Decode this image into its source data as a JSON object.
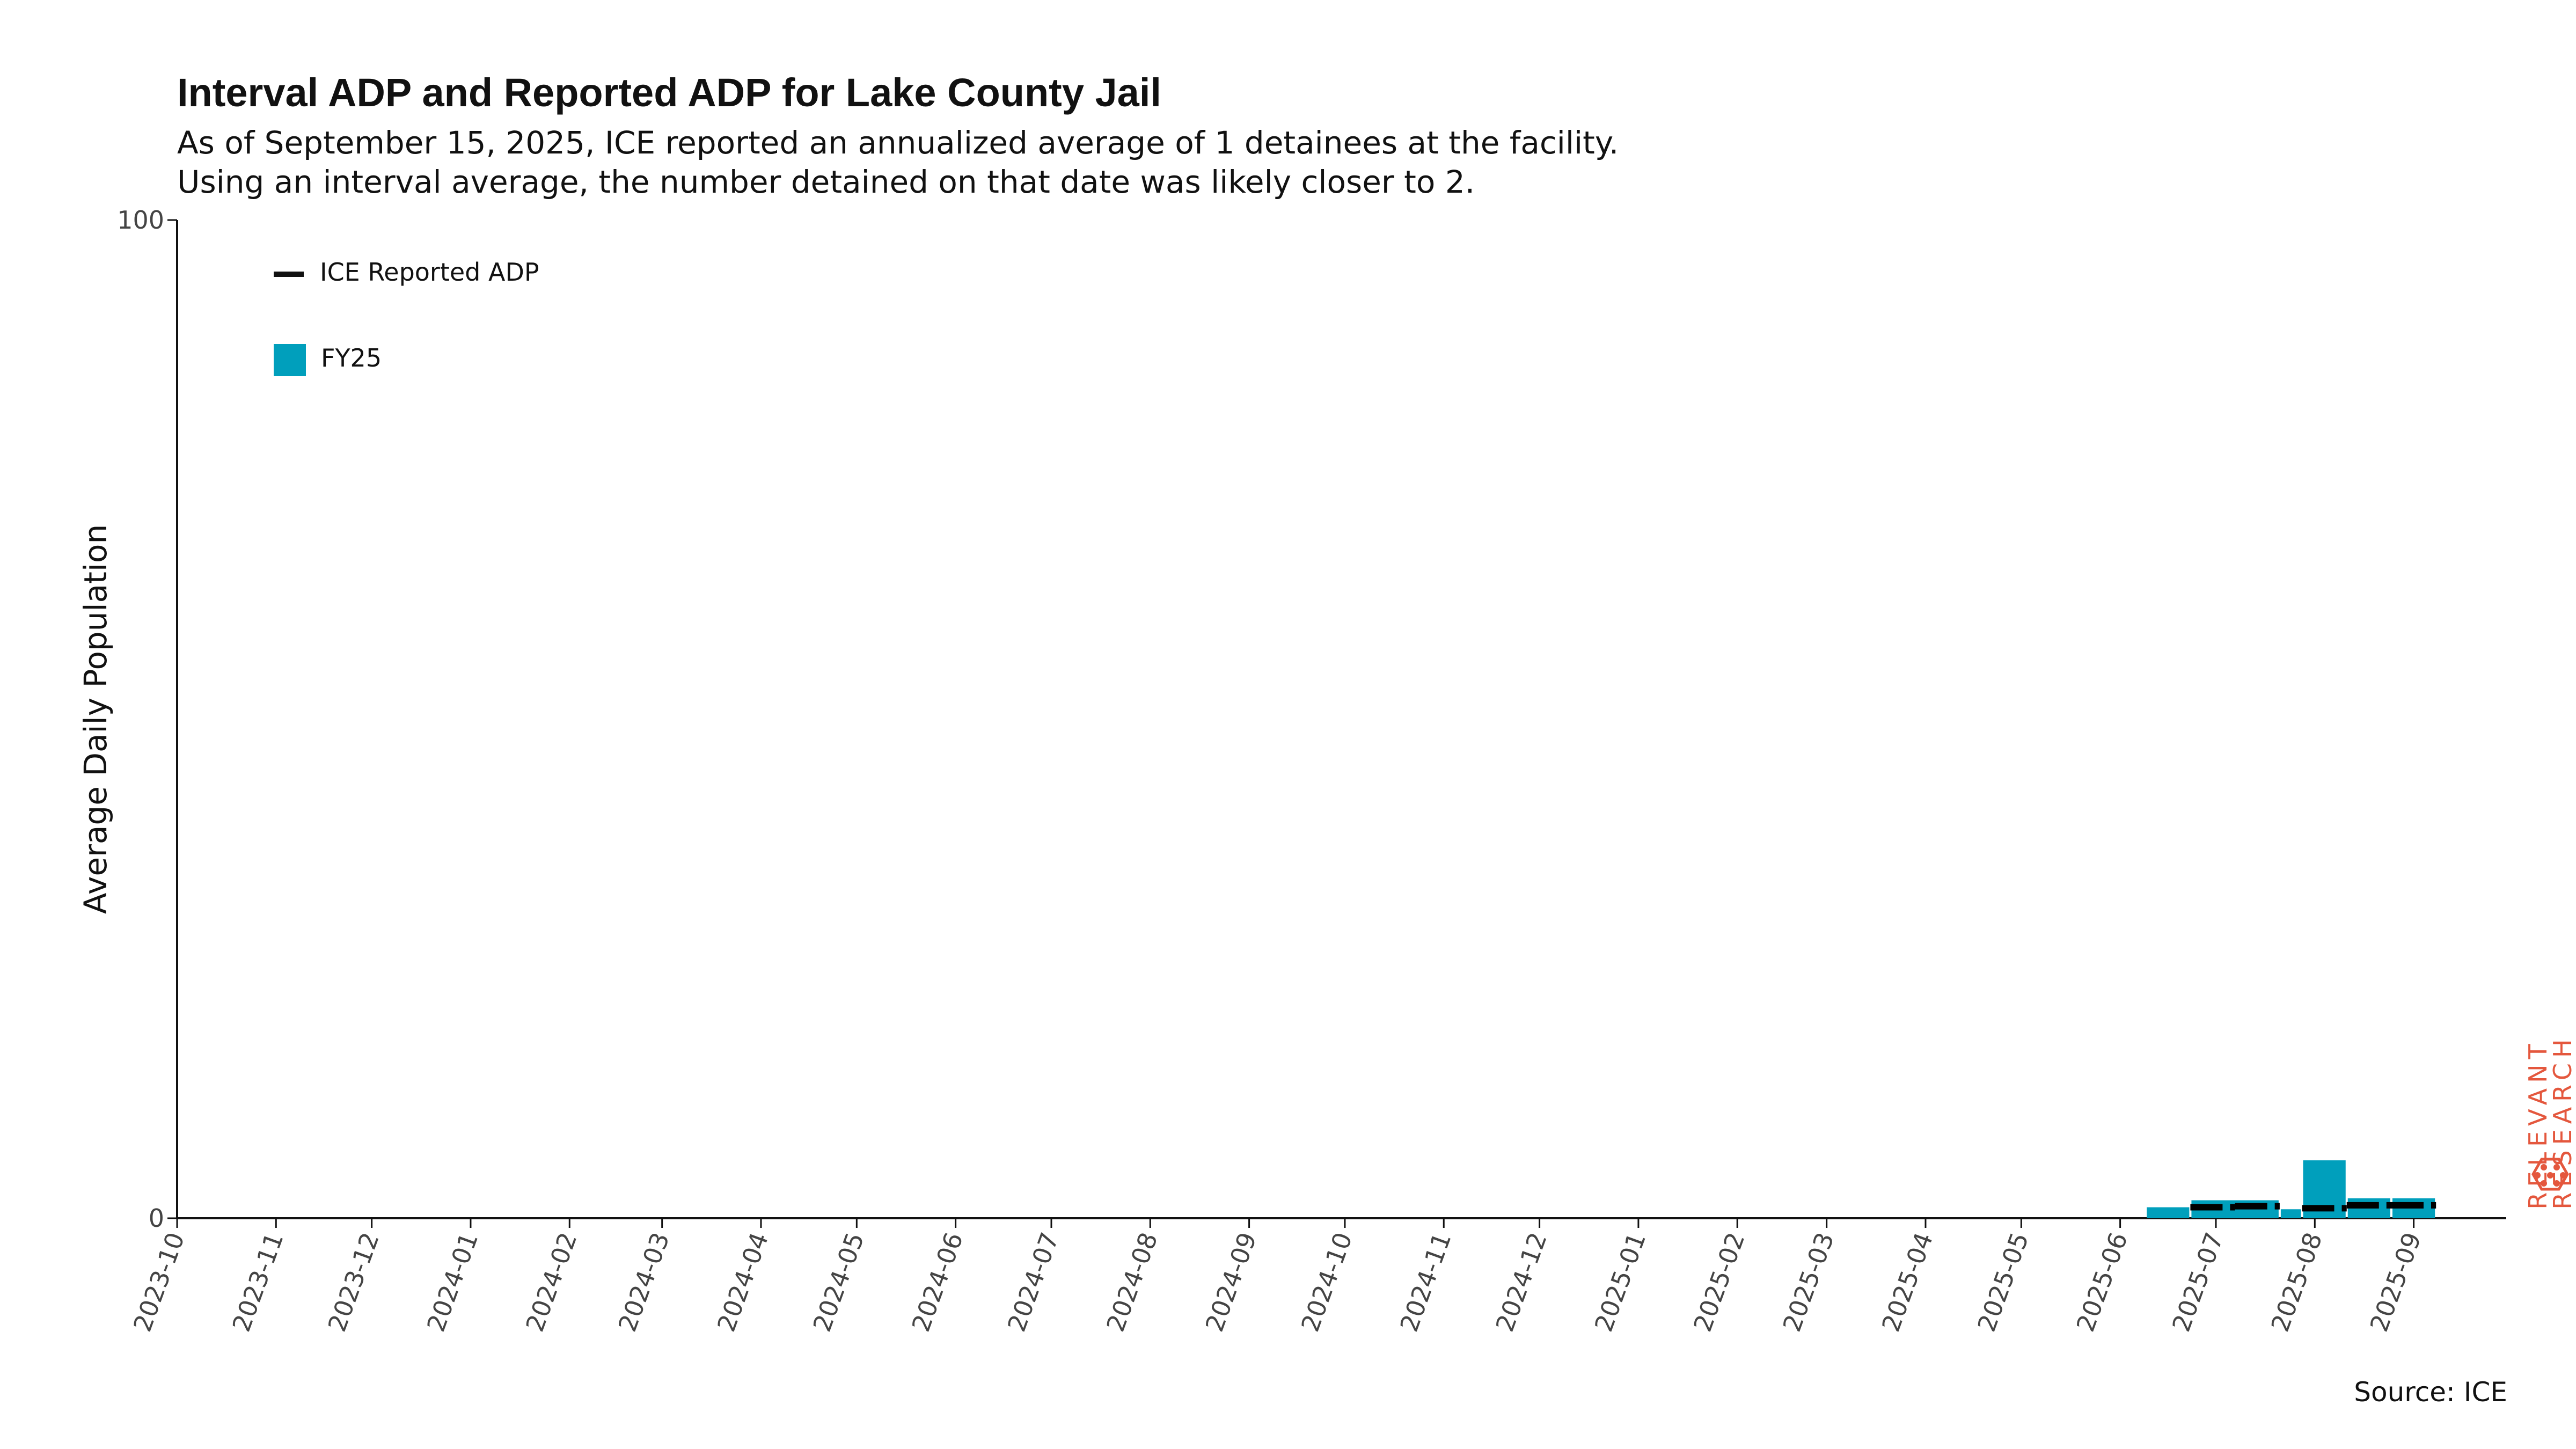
{
  "title": "Interval ADP and Reported ADP for Lake County Jail",
  "subtitle_line1": "As of September 15, 2025, ICE reported an annualized average of 1 detainees at the facility.",
  "subtitle_line2": "Using an interval average, the number detained on that date was likely closer to 2.",
  "source": "Source: ICE",
  "logo": {
    "line1": "RELEVANT",
    "line2": "RESEARCH",
    "color": "#e4573d"
  },
  "colors": {
    "bar": "#009fbc",
    "reported_line": "#000000",
    "axis": "#111111"
  },
  "chart_data": {
    "type": "bar",
    "title": "Interval ADP and Reported ADP for Lake County Jail",
    "xlabel": "",
    "ylabel": "Average Daily Population",
    "ylim": [
      0,
      100
    ],
    "yticks": [
      0,
      100
    ],
    "xlim": [
      "2023-10-01",
      "2025-09-30"
    ],
    "xticks": [
      "2023-10",
      "2023-11",
      "2023-12",
      "2024-01",
      "2024-02",
      "2024-03",
      "2024-04",
      "2024-05",
      "2024-06",
      "2024-07",
      "2024-08",
      "2024-09",
      "2024-10",
      "2024-11",
      "2024-12",
      "2025-01",
      "2025-02",
      "2025-03",
      "2025-04",
      "2025-05",
      "2025-06",
      "2025-07",
      "2025-08",
      "2025-09"
    ],
    "grid": false,
    "legend": {
      "position": "top-left",
      "entries": [
        "ICE Reported ADP",
        "FY25"
      ]
    },
    "series": [
      {
        "name": "FY25",
        "kind": "bar",
        "bars": [
          {
            "start": "2025-06-09",
            "end": "2025-06-23",
            "value": 1.1
          },
          {
            "start": "2025-06-23",
            "end": "2025-07-21",
            "value": 1.8
          },
          {
            "start": "2025-07-21",
            "end": "2025-07-28",
            "value": 0.9
          },
          {
            "start": "2025-07-28",
            "end": "2025-08-11",
            "value": 5.8
          },
          {
            "start": "2025-08-11",
            "end": "2025-08-25",
            "value": 2.0
          },
          {
            "start": "2025-08-25",
            "end": "2025-09-08",
            "value": 2.0
          }
        ]
      },
      {
        "name": "ICE Reported ADP",
        "kind": "step",
        "segments": [
          {
            "start": "2025-06-23",
            "end": "2025-07-07",
            "value": 1.1
          },
          {
            "start": "2025-07-07",
            "end": "2025-07-21",
            "value": 1.2
          },
          {
            "start": "2025-07-28",
            "end": "2025-08-11",
            "value": 1.0
          },
          {
            "start": "2025-08-11",
            "end": "2025-08-25",
            "value": 1.3
          },
          {
            "start": "2025-08-25",
            "end": "2025-09-08",
            "value": 1.3
          }
        ]
      }
    ]
  }
}
